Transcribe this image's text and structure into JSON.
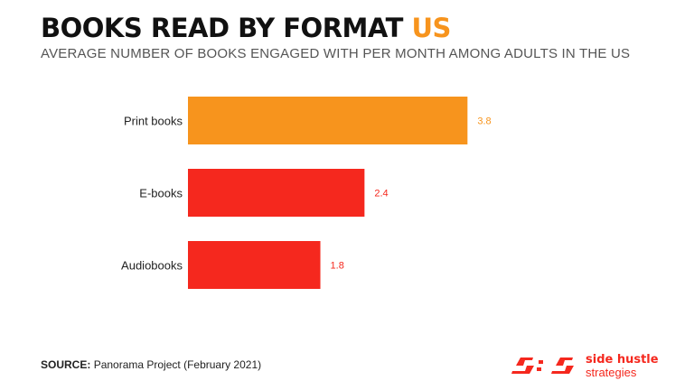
{
  "header": {
    "title_main": "BOOKS READ BY FORMAT",
    "title_accent": "US",
    "subtitle": "AVERAGE NUMBER OF BOOKS ENGAGED WITH PER MONTH AMONG ADULTS IN THE US"
  },
  "colors": {
    "accent": "#f7941d",
    "brand_red": "#f5281e"
  },
  "chart_data": {
    "type": "bar",
    "orientation": "horizontal",
    "title": "BOOKS READ BY FORMAT US",
    "subtitle": "AVERAGE NUMBER OF BOOKS ENGAGED WITH PER MONTH AMONG ADULTS IN THE US",
    "categories": [
      "Print books",
      "E-books",
      "Audiobooks"
    ],
    "values": [
      3.8,
      2.4,
      1.8
    ],
    "value_labels": [
      "3.8",
      "2.4",
      "1.8"
    ],
    "bar_colors": [
      "#f7941d",
      "#f5281e",
      "#f5281e"
    ],
    "xlim": [
      0,
      5.7
    ],
    "xlabel": "",
    "ylabel": "",
    "grid": false,
    "legend": "none"
  },
  "footer": {
    "source_label": "SOURCE:",
    "source_text": "Panorama Project (February 2021)"
  },
  "logo": {
    "line1": "side hustle",
    "line2": "strategies"
  }
}
